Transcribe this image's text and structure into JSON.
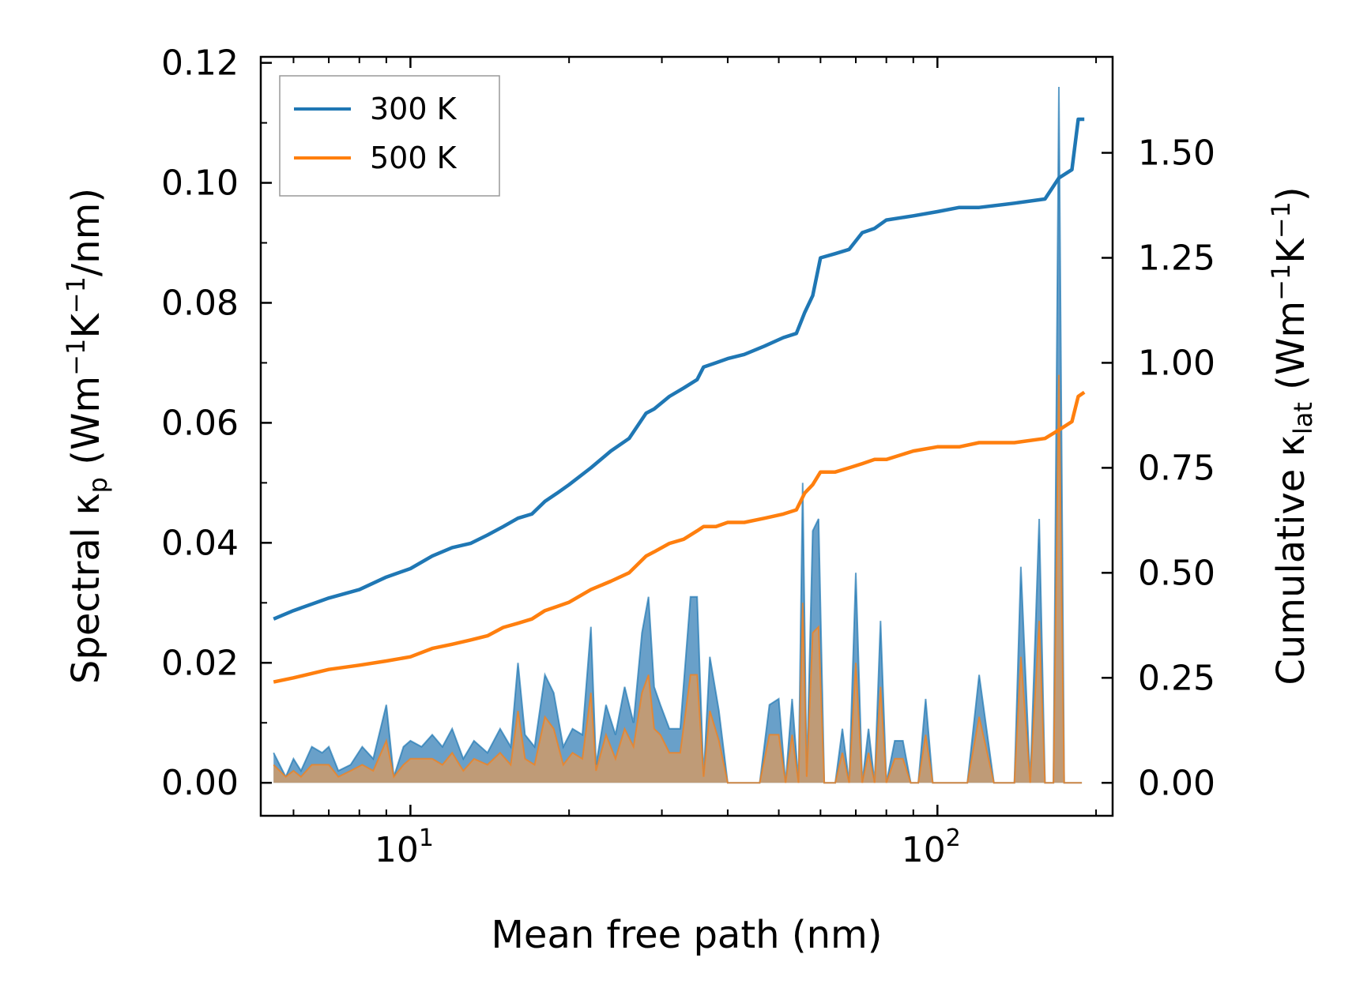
{
  "chart_data": {
    "type": "line",
    "xscale": "log",
    "xlim": [
      5.2,
      215
    ],
    "ylim_left": [
      -0.0055,
      0.121
    ],
    "ylim_right": [
      -0.0785,
      1.7285
    ],
    "xlabel": "Mean free path (nm)",
    "ylabel_left": "Spectral κp (Wm⁻¹K⁻¹/nm)",
    "ylabel_right": "Cumulative κlat (Wm⁻¹K⁻¹)",
    "xticks": [
      {
        "value": 10,
        "label": "10",
        "exp": "1"
      },
      {
        "value": 100,
        "label": "10",
        "exp": "2"
      }
    ],
    "yticks_left": [
      0.0,
      0.02,
      0.04,
      0.06,
      0.08,
      0.1,
      0.12
    ],
    "yticks_left_labels": [
      "0.00",
      "0.02",
      "0.04",
      "0.06",
      "0.08",
      "0.10",
      "0.12"
    ],
    "yticks_right": [
      0.0,
      0.25,
      0.5,
      0.75,
      1.0,
      1.25,
      1.5
    ],
    "yticks_right_labels": [
      "0.00",
      "0.25",
      "0.50",
      "0.75",
      "1.00",
      "1.25",
      "1.50"
    ],
    "legend": {
      "position": "top-left",
      "entries": [
        "300 K",
        "500 K"
      ]
    },
    "colors": {
      "300 K": "#1f77b4",
      "500 K": "#ff7f0e",
      "spectral_300_fill": "#4f8fc0",
      "spectral_500_fill": "#c99a6e"
    },
    "series_cumulative": [
      {
        "name": "300 K",
        "axis": "right",
        "x": [
          5.5,
          6,
          7,
          8,
          9,
          10,
          11,
          12,
          13,
          14,
          15,
          16,
          17,
          18,
          19,
          20,
          22,
          24,
          26,
          28,
          29,
          31,
          33,
          35,
          36,
          38,
          40,
          43,
          47,
          51,
          54,
          56,
          58,
          60,
          64,
          68,
          72,
          76,
          80,
          90,
          100,
          110,
          120,
          140,
          160,
          170,
          180,
          185,
          190
        ],
        "values": [
          0.39,
          0.41,
          0.44,
          0.46,
          0.49,
          0.51,
          0.54,
          0.56,
          0.57,
          0.59,
          0.61,
          0.63,
          0.64,
          0.67,
          0.69,
          0.71,
          0.75,
          0.79,
          0.82,
          0.88,
          0.89,
          0.92,
          0.94,
          0.96,
          0.99,
          1.0,
          1.01,
          1.02,
          1.04,
          1.06,
          1.07,
          1.12,
          1.16,
          1.25,
          1.26,
          1.27,
          1.31,
          1.32,
          1.34,
          1.35,
          1.36,
          1.37,
          1.37,
          1.38,
          1.39,
          1.44,
          1.46,
          1.58,
          1.58
        ]
      },
      {
        "name": "500 K",
        "axis": "right",
        "x": [
          5.5,
          6,
          7,
          8,
          9,
          10,
          11,
          12,
          13,
          14,
          15,
          16,
          17,
          18,
          19,
          20,
          22,
          24,
          26,
          28,
          29,
          31,
          33,
          35,
          36,
          38,
          40,
          43,
          47,
          51,
          54,
          56,
          58,
          60,
          64,
          68,
          72,
          76,
          80,
          90,
          100,
          110,
          120,
          140,
          160,
          170,
          180,
          185,
          190
        ],
        "values": [
          0.24,
          0.25,
          0.27,
          0.28,
          0.29,
          0.3,
          0.32,
          0.33,
          0.34,
          0.35,
          0.37,
          0.38,
          0.39,
          0.41,
          0.42,
          0.43,
          0.46,
          0.48,
          0.5,
          0.54,
          0.55,
          0.57,
          0.58,
          0.6,
          0.61,
          0.61,
          0.62,
          0.62,
          0.63,
          0.64,
          0.65,
          0.69,
          0.71,
          0.74,
          0.74,
          0.75,
          0.76,
          0.77,
          0.77,
          0.79,
          0.8,
          0.8,
          0.81,
          0.81,
          0.82,
          0.84,
          0.86,
          0.92,
          0.93
        ]
      }
    ],
    "series_spectral": [
      {
        "name": "300 K",
        "axis": "left",
        "x": [
          5.5,
          5.8,
          6.0,
          6.2,
          6.5,
          6.8,
          7.0,
          7.3,
          7.7,
          8.1,
          8.5,
          9.0,
          9.3,
          9.7,
          10.0,
          10.5,
          11.0,
          11.5,
          12.0,
          12.6,
          13.2,
          14.0,
          14.8,
          15.5,
          16.0,
          16.5,
          17.2,
          18.0,
          18.7,
          19.5,
          20.3,
          21.2,
          22.0,
          22.5,
          23.5,
          24.5,
          25.5,
          26.5,
          27.5,
          28.3,
          29.0,
          29.8,
          31.0,
          32.5,
          34.0,
          35.0,
          36.0,
          37.0,
          38.5,
          40.0,
          41.0,
          42.5,
          44.0,
          46.0,
          48.0,
          50.0,
          51.5,
          53.0,
          54.5,
          55.5,
          56.5,
          58.0,
          59.5,
          61.0,
          62.5,
          64.0,
          66.0,
          68.0,
          70.0,
          72.0,
          74.0,
          76.0,
          78.0,
          80.0,
          83.0,
          86.0,
          89.0,
          92.0,
          95.0,
          98.0,
          102.0,
          106.0,
          110.0,
          114.0,
          120.0,
          128.0,
          136.0,
          140.0,
          144.0,
          150.0,
          156.0,
          160.0,
          163.0,
          166.0,
          170.0,
          174.0,
          179.0,
          182.0,
          185.0,
          188.0
        ],
        "values": [
          0.005,
          0.001,
          0.004,
          0.002,
          0.006,
          0.005,
          0.006,
          0.002,
          0.003,
          0.006,
          0.004,
          0.013,
          0.001,
          0.006,
          0.007,
          0.006,
          0.008,
          0.006,
          0.009,
          0.004,
          0.007,
          0.005,
          0.009,
          0.006,
          0.02,
          0.008,
          0.006,
          0.018,
          0.015,
          0.006,
          0.009,
          0.008,
          0.026,
          0.003,
          0.013,
          0.008,
          0.016,
          0.01,
          0.025,
          0.031,
          0.016,
          0.013,
          0.009,
          0.009,
          0.031,
          0.031,
          0.001,
          0.021,
          0.012,
          0.0,
          0.0,
          0.0,
          0.0,
          0.0,
          0.013,
          0.014,
          0.0,
          0.014,
          0.0,
          0.05,
          0.001,
          0.042,
          0.044,
          0.0,
          0.0,
          0.0,
          0.009,
          0.0,
          0.035,
          0.0,
          0.009,
          0.0,
          0.027,
          0.0,
          0.007,
          0.007,
          0.0,
          0.0,
          0.014,
          0.0,
          0.0,
          0.0,
          0.0,
          0.0,
          0.018,
          0.0,
          0.0,
          0.0,
          0.036,
          0.0,
          0.044,
          0.0,
          0.0,
          0.0,
          0.116,
          0.0,
          0.0,
          0.0,
          0.0,
          0.0
        ]
      },
      {
        "name": "500 K",
        "axis": "left",
        "x": [
          5.5,
          5.8,
          6.0,
          6.2,
          6.5,
          6.8,
          7.0,
          7.3,
          7.7,
          8.1,
          8.5,
          9.0,
          9.3,
          9.7,
          10.0,
          10.5,
          11.0,
          11.5,
          12.0,
          12.6,
          13.2,
          14.0,
          14.8,
          15.5,
          16.0,
          16.5,
          17.2,
          18.0,
          18.7,
          19.5,
          20.3,
          21.2,
          22.0,
          22.5,
          23.5,
          24.5,
          25.5,
          26.5,
          27.5,
          28.3,
          29.0,
          29.8,
          31.0,
          32.5,
          34.0,
          35.0,
          36.0,
          37.0,
          38.5,
          40.0,
          41.0,
          42.5,
          44.0,
          46.0,
          48.0,
          50.0,
          51.5,
          53.0,
          54.5,
          55.5,
          56.5,
          58.0,
          59.5,
          61.0,
          62.5,
          64.0,
          66.0,
          68.0,
          70.0,
          72.0,
          74.0,
          76.0,
          78.0,
          80.0,
          83.0,
          86.0,
          89.0,
          92.0,
          95.0,
          98.0,
          102.0,
          106.0,
          110.0,
          114.0,
          120.0,
          128.0,
          136.0,
          140.0,
          144.0,
          150.0,
          156.0,
          160.0,
          163.0,
          166.0,
          170.0,
          174.0,
          179.0,
          182.0,
          185.0,
          188.0
        ],
        "values": [
          0.003,
          0.001,
          0.002,
          0.001,
          0.003,
          0.003,
          0.003,
          0.001,
          0.002,
          0.003,
          0.002,
          0.007,
          0.001,
          0.003,
          0.004,
          0.004,
          0.004,
          0.003,
          0.005,
          0.002,
          0.004,
          0.003,
          0.005,
          0.003,
          0.012,
          0.004,
          0.003,
          0.011,
          0.009,
          0.003,
          0.005,
          0.004,
          0.015,
          0.002,
          0.008,
          0.004,
          0.009,
          0.006,
          0.015,
          0.018,
          0.009,
          0.008,
          0.005,
          0.005,
          0.018,
          0.018,
          0.001,
          0.012,
          0.007,
          0.0,
          0.0,
          0.0,
          0.0,
          0.0,
          0.008,
          0.008,
          0.0,
          0.008,
          0.0,
          0.03,
          0.001,
          0.025,
          0.026,
          0.0,
          0.0,
          0.0,
          0.005,
          0.0,
          0.02,
          0.0,
          0.005,
          0.0,
          0.016,
          0.0,
          0.004,
          0.004,
          0.0,
          0.0,
          0.008,
          0.0,
          0.0,
          0.0,
          0.0,
          0.0,
          0.011,
          0.0,
          0.0,
          0.0,
          0.021,
          0.0,
          0.027,
          0.0,
          0.0,
          0.0,
          0.068,
          0.0,
          0.0,
          0.0,
          0.0,
          0.0
        ]
      }
    ]
  }
}
